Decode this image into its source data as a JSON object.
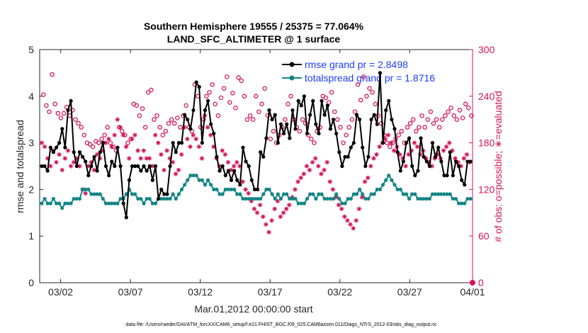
{
  "chart_data": {
    "type": "line",
    "title": "Southern Hemisphere 19555 / 25375 = 77.064%",
    "subtitle": "LAND_SFC_ALTIMETER @ 1 surface",
    "xlabel": "Mar.01,2012 00:00:00 start",
    "ylabel_left": "rmse and totalspread",
    "ylabel_right": "# of obs: o=possible; ∗=evaluated",
    "footnote": "data file: /Users/raeder/DAI/ATM_forcXX/CAM6_setup/f.e21.FHIST_BGC.f09_025.CAM6assim.011/Diags_NTrS_2012-03/obs_diag_output.nc",
    "xlim": [
      0,
      31
    ],
    "ylim_left": [
      0,
      5
    ],
    "ylim_right": [
      0,
      300
    ],
    "x_ticks": [
      {
        "x": 1.5,
        "label": "03/02"
      },
      {
        "x": 6.5,
        "label": "03/07"
      },
      {
        "x": 11.5,
        "label": "03/12"
      },
      {
        "x": 16.5,
        "label": "03/17"
      },
      {
        "x": 21.5,
        "label": "03/22"
      },
      {
        "x": 26.5,
        "label": "03/27"
      },
      {
        "x": 31.0,
        "label": "04/01"
      }
    ],
    "y_ticks_left": [
      {
        "v": 0,
        "label": "0"
      },
      {
        "v": 1,
        "label": "1"
      },
      {
        "v": 2,
        "label": "2"
      },
      {
        "v": 3,
        "label": "3"
      },
      {
        "v": 4,
        "label": "4"
      },
      {
        "v": 5,
        "label": "5"
      }
    ],
    "y_ticks_right": [
      {
        "v": 0,
        "label": "0"
      },
      {
        "v": 60,
        "label": "60"
      },
      {
        "v": 120,
        "label": "120"
      },
      {
        "v": 180,
        "label": "180"
      },
      {
        "v": 240,
        "label": "240"
      },
      {
        "v": 300,
        "label": "300"
      }
    ],
    "colors": {
      "rmse": "#000000",
      "spread": "#138585",
      "obs": "#d4145a",
      "legend_text": "#1a3cff"
    },
    "series": [
      {
        "name": "rmse grand pr = 2.8498",
        "axis": "left",
        "values": [
          2.5,
          2.5,
          2.4,
          2.9,
          2.8,
          2.9,
          3.0,
          3.3,
          2.9,
          3.7,
          3.9,
          2.8,
          2.5,
          2.8,
          2.7,
          2.6,
          2.3,
          2.5,
          2.7,
          2.4,
          2.8,
          3.0,
          2.5,
          2.3,
          2.6,
          2.5,
          2.9,
          2.5,
          1.7,
          1.4,
          2.2,
          2.5,
          2.5,
          2.5,
          2.4,
          2.5,
          2.4,
          2.5,
          2.2,
          2.5,
          1.8,
          2.0,
          1.9,
          1.9,
          2.5,
          3.0,
          2.8,
          3.0,
          3.0,
          3.6,
          3.5,
          3.3,
          3.7,
          4.3,
          4.2,
          3.0,
          3.7,
          3.9,
          3.4,
          3.2,
          2.7,
          2.4,
          2.5,
          2.3,
          2.4,
          2.2,
          2.4,
          2.2,
          2.1,
          2.9,
          2.6,
          2.5,
          2.2,
          2.0,
          2.0,
          2.8,
          2.7,
          3.1,
          3.7,
          3.5,
          3.6,
          3.0,
          3.4,
          3.2,
          3.4,
          3.1,
          3.7,
          3.3,
          3.9,
          3.8,
          4.0,
          3.2,
          3.6,
          3.9,
          3.4,
          3.2,
          3.9,
          3.6,
          3.8,
          3.3,
          3.5,
          3.2,
          2.8,
          2.5,
          2.7,
          2.7,
          2.9,
          3.0,
          3.6,
          3.5,
          2.9,
          2.5,
          2.7,
          3.5,
          3.6,
          3.4,
          4.5,
          3.0,
          3.7,
          3.9,
          3.5,
          3.3,
          2.8,
          2.4,
          2.6,
          3.0,
          3.1,
          2.5,
          2.3,
          2.4,
          3.1,
          2.7,
          2.6,
          2.5,
          3.0,
          2.7,
          2.9,
          2.6,
          2.3,
          2.3,
          2.8,
          2.3,
          2.6,
          2.5,
          2.2,
          2.1,
          2.6,
          2.6
        ]
      },
      {
        "name": "totalspread grand pr = 1.8716",
        "axis": "left",
        "values": [
          1.7,
          1.8,
          1.7,
          1.7,
          1.8,
          1.7,
          1.7,
          1.6,
          1.7,
          1.7,
          1.7,
          1.8,
          1.8,
          1.8,
          2.0,
          2.0,
          2.0,
          1.9,
          1.9,
          1.9,
          1.9,
          1.8,
          1.7,
          1.7,
          1.7,
          1.7,
          1.7,
          1.8,
          1.8,
          1.9,
          2.0,
          1.9,
          1.9,
          1.8,
          1.8,
          1.7,
          1.8,
          1.8,
          1.7,
          1.7,
          1.8,
          1.8,
          1.8,
          1.8,
          1.8,
          1.9,
          1.8,
          1.9,
          2.0,
          2.1,
          2.2,
          2.3,
          2.3,
          2.3,
          2.2,
          2.2,
          2.1,
          2.2,
          2.1,
          2.0,
          2.0,
          1.9,
          1.9,
          2.0,
          2.0,
          2.0,
          2.0,
          1.9,
          1.9,
          1.8,
          1.8,
          1.8,
          1.8,
          1.8,
          1.8,
          1.8,
          1.9,
          2.0,
          2.0,
          1.9,
          1.8,
          1.9,
          1.8,
          1.9,
          1.9,
          1.8,
          1.8,
          1.8,
          1.7,
          1.7,
          1.7,
          1.8,
          1.9,
          1.9,
          1.8,
          1.9,
          1.9,
          1.8,
          1.8,
          1.8,
          1.8,
          1.9,
          1.8,
          1.7,
          1.7,
          1.8,
          1.8,
          1.9,
          1.9,
          2.0,
          1.9,
          1.8,
          1.8,
          1.9,
          1.9,
          2.0,
          2.0,
          2.1,
          2.2,
          2.3,
          2.2,
          2.1,
          2.0,
          2.0,
          1.9,
          1.9,
          1.8,
          1.9,
          1.9,
          1.8,
          1.8,
          1.8,
          1.8,
          1.8,
          1.9,
          1.9,
          1.9,
          1.9,
          1.9,
          1.9,
          1.9,
          1.8,
          1.8,
          1.7,
          1.7,
          1.7,
          1.8,
          1.8
        ]
      },
      {
        "name": "possible obs (o)",
        "axis": "right",
        "marker": "circle",
        "values": [
          242,
          228,
          220,
          268,
          230,
          218,
          212,
          218,
          226,
          215,
          222,
          210,
          205,
          200,
          190,
          180,
          178,
          175,
          182,
          180,
          185,
          190,
          200,
          180,
          175,
          170,
          200,
          195,
          190,
          180,
          185,
          230,
          228,
          215,
          224,
          200,
          245,
          248,
          210,
          215,
          200,
          190,
          195,
          205,
          210,
          205,
          212,
          200,
          215,
          228,
          200,
          195,
          255,
          240,
          200,
          210,
          240,
          245,
          255,
          230,
          215,
          238,
          250,
          265,
          232,
          244,
          225,
          264,
          260,
          240,
          210,
          215,
          210,
          240,
          220,
          230,
          250,
          215,
          185,
          195,
          180,
          190,
          200,
          210,
          230,
          240,
          210,
          200,
          195,
          210,
          205,
          190,
          185,
          180,
          195,
          200,
          240,
          238,
          232,
          245,
          220,
          210,
          200,
          180,
          190,
          200,
          210,
          220,
          255,
          235,
          265,
          240,
          250,
          245,
          230,
          215,
          205,
          190,
          180,
          175,
          180,
          185,
          190,
          195,
          180,
          200,
          205,
          210,
          195,
          200,
          215,
          200,
          210,
          220,
          205,
          210,
          200,
          210,
          215,
          220,
          225,
          215,
          210,
          222,
          212,
          230,
          225,
          215
        ]
      },
      {
        "name": "evaluated obs (∗)",
        "axis": "right",
        "marker": "asterisk",
        "values": [
          180,
          175,
          160,
          150,
          170,
          155,
          165,
          145,
          160,
          170,
          150,
          155,
          160,
          150,
          120,
          115,
          150,
          155,
          145,
          165,
          160,
          170,
          180,
          185,
          175,
          190,
          210,
          200,
          190,
          175,
          160,
          185,
          190,
          170,
          160,
          170,
          160,
          160,
          150,
          190,
          180,
          165,
          145,
          170,
          160,
          155,
          140,
          145,
          165,
          200,
          185,
          175,
          190,
          185,
          175,
          160,
          215,
          200,
          190,
          175,
          160,
          150,
          170,
          165,
          155,
          145,
          150,
          155,
          150,
          130,
          120,
          115,
          105,
          95,
          90,
          100,
          85,
          75,
          65,
          80,
          95,
          105,
          85,
          90,
          95,
          100,
          110,
          120,
          130,
          135,
          140,
          150,
          145,
          155,
          160,
          150,
          140,
          145,
          155,
          130,
          120,
          110,
          100,
          95,
          85,
          80,
          75,
          70,
          80,
          95,
          110,
          130,
          135,
          150,
          160,
          165,
          175,
          180,
          185,
          190,
          180,
          170,
          175,
          165,
          160,
          150,
          165,
          170,
          180,
          175,
          165,
          170,
          160,
          155,
          150,
          160,
          165,
          160,
          170,
          175,
          180,
          170,
          160,
          155,
          150,
          160,
          165,
          155
        ]
      }
    ]
  }
}
